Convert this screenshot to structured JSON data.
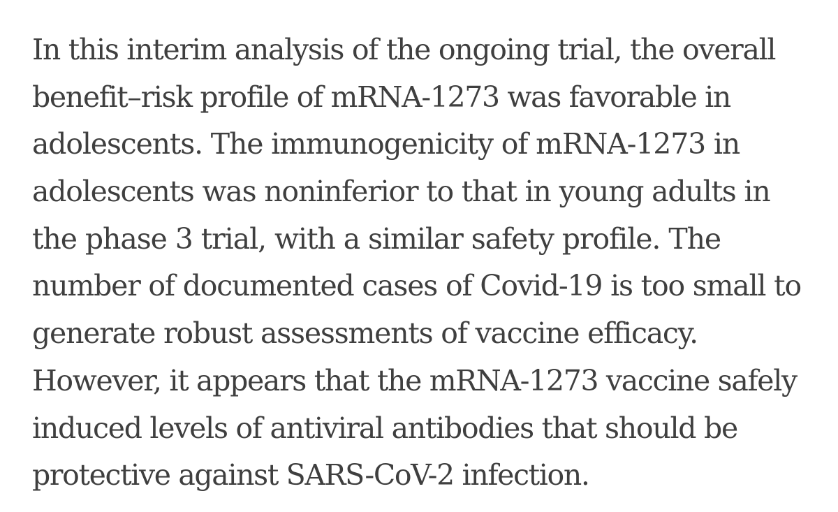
{
  "excerpt": {
    "lines": [
      "In this interim analysis of the ongoing trial, the overall",
      "benefit–risk profile of mRNA-1273 was favorable in",
      "adolescents. The immunogenicity of mRNA-1273 in",
      "adolescents was noninferior to that in young adults in",
      "the phase 3 trial, with a similar safety profile. The",
      "number of documented cases of Covid-19 is too small to",
      "generate robust assessments of vaccine efficacy.",
      "However, it appears that the mRNA-1273 vaccine safely",
      "induced levels of antiviral antibodies that should be",
      "protective against SARS-CoV-2 infection."
    ]
  },
  "colors": {
    "text": "#3f3f3f",
    "background": "#ffffff"
  }
}
